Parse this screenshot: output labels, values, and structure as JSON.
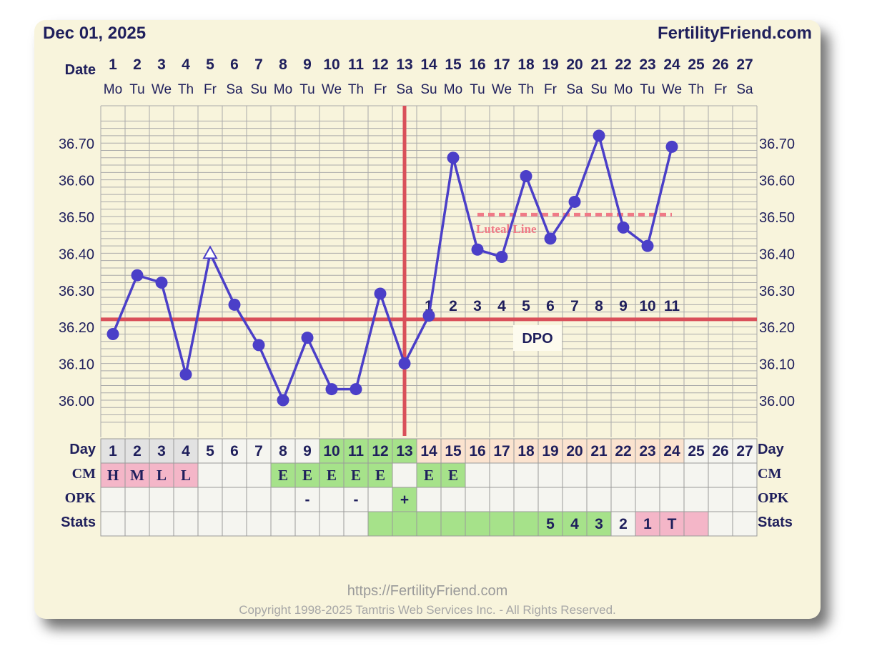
{
  "header": {
    "date": "Dec 01, 2025",
    "site": "FertilityFriend.com"
  },
  "labels": {
    "date_row": "Date",
    "day_row": "Day",
    "cm_row": "CM",
    "opk_row": "OPK",
    "stats_row": "Stats",
    "dpo": "DPO",
    "luteal": "Luteal Line"
  },
  "footer": {
    "url": "https://FertilityFriend.com",
    "copyright": "Copyright 1998-2025 Tamtris Web Services Inc. - All Rights Reserved."
  },
  "colors": {
    "line": "#4b3fc8",
    "coverline": "#d9505a",
    "luteal": "#f07a86",
    "text": "#1f1f5c",
    "green": "#a6e28a",
    "pink": "#f4b6c8",
    "peach": "#fbe3cf",
    "gray": "#e2e2e2",
    "cell": "#f5f5f0"
  },
  "chart_data": {
    "type": "line",
    "title": "Dec 01, 2025",
    "x": [
      "1",
      "2",
      "3",
      "4",
      "5",
      "6",
      "7",
      "8",
      "9",
      "10",
      "11",
      "12",
      "13",
      "14",
      "15",
      "16",
      "17",
      "18",
      "19",
      "20",
      "21",
      "22",
      "23",
      "24",
      "25",
      "26",
      "27"
    ],
    "weekdays": [
      "Mo",
      "Tu",
      "We",
      "Th",
      "Fr",
      "Sa",
      "Su",
      "Mo",
      "Tu",
      "We",
      "Th",
      "Fr",
      "Sa",
      "Su",
      "Mo",
      "Tu",
      "We",
      "Th",
      "Fr",
      "Sa",
      "Su",
      "Mo",
      "Tu",
      "We",
      "Th",
      "Fr",
      "Sa"
    ],
    "series": [
      {
        "values": [
          36.18,
          36.34,
          36.32,
          36.07,
          36.4,
          36.26,
          36.15,
          36.0,
          36.17,
          36.03,
          36.03,
          36.29,
          36.1,
          36.23,
          36.66,
          36.41,
          36.39,
          36.61,
          36.44,
          36.54,
          36.72,
          36.47,
          36.42,
          36.69,
          null,
          null,
          null
        ]
      }
    ],
    "discarded_day": 5,
    "y_ticks": [
      "36.70",
      "36.60",
      "36.50",
      "36.40",
      "36.30",
      "36.20",
      "36.10",
      "36.00"
    ],
    "ylim": [
      35.92,
      36.77
    ],
    "coverline": 36.22,
    "ovulation_day": 13,
    "luteal_line": {
      "value": 36.505,
      "from_day": 16,
      "to_day": 24
    },
    "dpo": [
      "1",
      "2",
      "3",
      "4",
      "5",
      "6",
      "7",
      "8",
      "9",
      "10",
      "11"
    ],
    "dpo_start_day": 14,
    "day_row_color": [
      "gray",
      "gray",
      "gray",
      "gray",
      "none",
      "none",
      "none",
      "none",
      "none",
      "green",
      "green",
      "green",
      "green",
      "peach",
      "peach",
      "peach",
      "peach",
      "peach",
      "peach",
      "peach",
      "peach",
      "peach",
      "peach",
      "peach",
      "none",
      "none",
      "none"
    ],
    "cm": [
      "H",
      "M",
      "L",
      "L",
      "",
      "",
      "",
      "E",
      "E",
      "E",
      "E",
      "E",
      "",
      "E",
      "E",
      "",
      "",
      "",
      "",
      "",
      "",
      "",
      "",
      "",
      "",
      "",
      ""
    ],
    "cm_color": [
      "pink",
      "pink",
      "pink",
      "pink",
      "",
      "",
      "",
      "green",
      "green",
      "green",
      "green",
      "green",
      "",
      "green",
      "green",
      "",
      "",
      "",
      "",
      "",
      "",
      "",
      "",
      "",
      "",
      "",
      ""
    ],
    "opk": [
      "",
      "",
      "",
      "",
      "",
      "",
      "",
      "",
      "-",
      "",
      "-",
      "",
      "+",
      "",
      "",
      "",
      "",
      "",
      "",
      "",
      "",
      "",
      "",
      "",
      "",
      "",
      ""
    ],
    "opk_color": [
      "",
      "",
      "",
      "",
      "",
      "",
      "",
      "",
      "",
      "",
      "",
      "",
      "green",
      "",
      "",
      "",
      "",
      "",
      "",
      "",
      "",
      "",
      "",
      "",
      "",
      "",
      ""
    ],
    "stats": [
      "",
      "",
      "",
      "",
      "",
      "",
      "",
      "",
      "",
      "",
      "",
      "",
      "",
      "",
      "",
      "",
      "",
      "",
      "5",
      "4",
      "3",
      "2",
      "1",
      "T",
      "",
      "",
      ""
    ],
    "stats_color": [
      "",
      "",
      "",
      "",
      "",
      "",
      "",
      "",
      "",
      "",
      "",
      "green",
      "green",
      "green",
      "green",
      "green",
      "green",
      "green",
      "green",
      "green",
      "green",
      "",
      "pink",
      "pink",
      "pink",
      "",
      ""
    ]
  }
}
